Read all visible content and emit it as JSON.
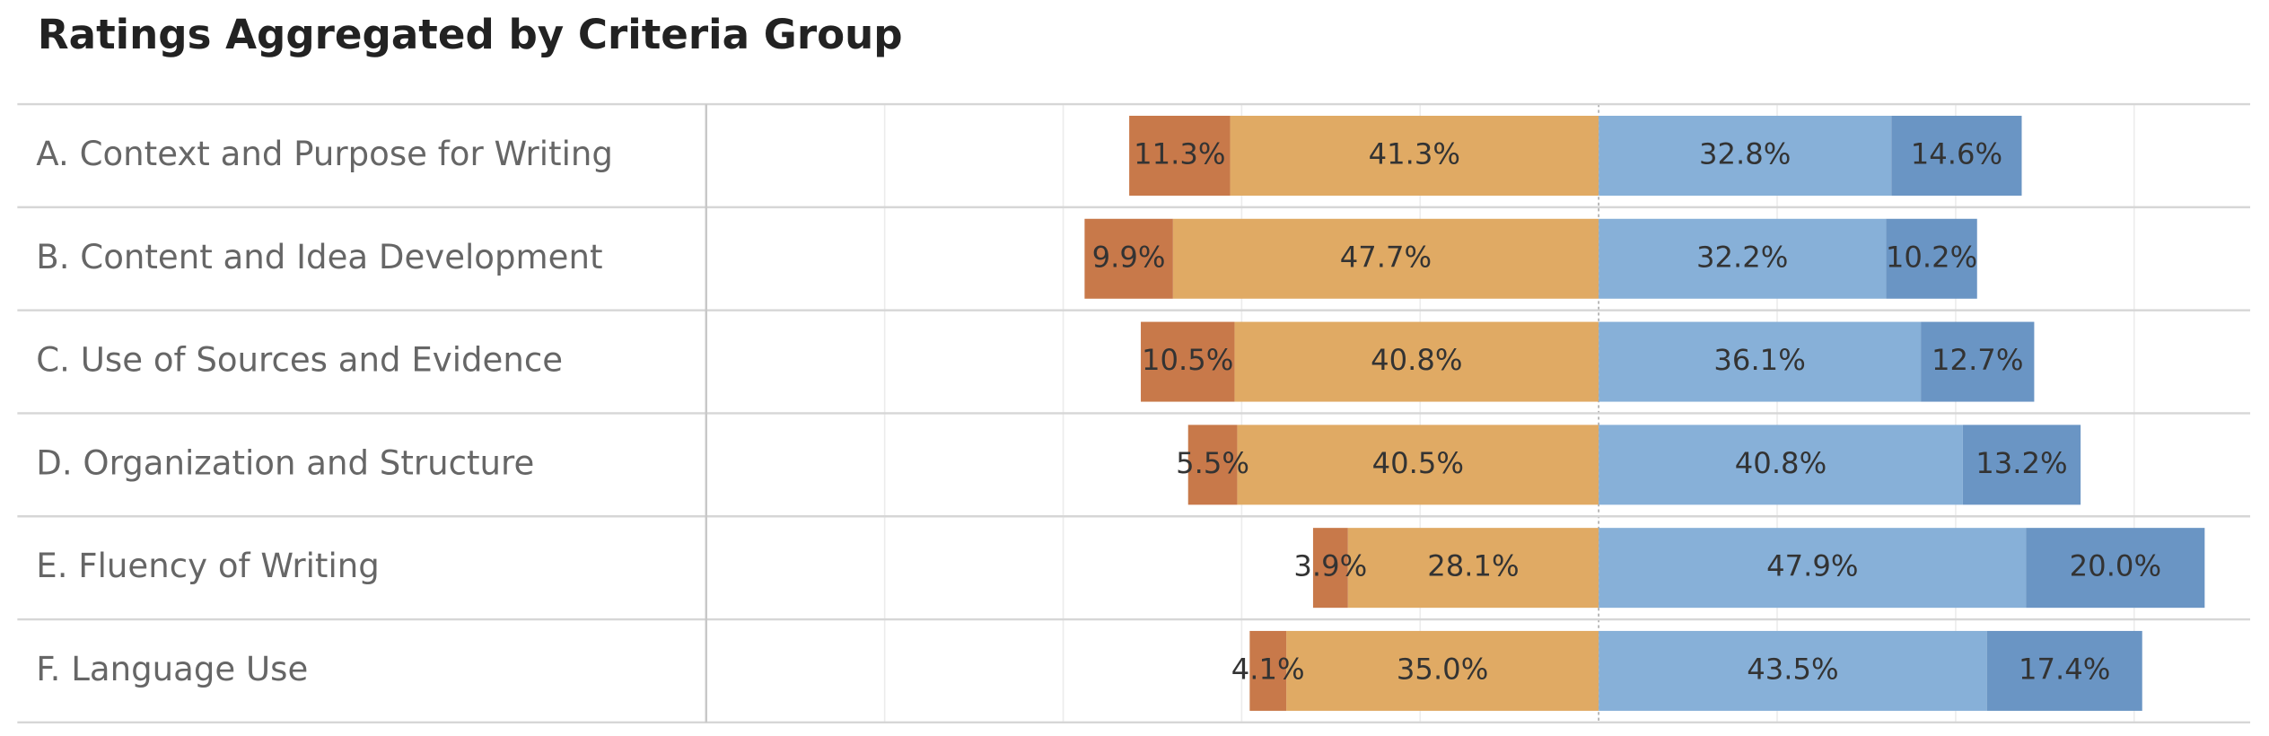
{
  "chart_data": {
    "type": "bar",
    "orientation": "horizontal",
    "diverging": true,
    "title": "Ratings Aggregated by Criteria Group",
    "categories": [
      "A. Context and Purpose for Writing",
      "B. Content and Idea Development",
      "C. Use of Sources and Evidence",
      "D. Organization and Structure",
      "E. Fluency of Writing",
      "F. Language Use"
    ],
    "series": [
      {
        "color": "#c8794a",
        "values": [
          11.3,
          9.9,
          10.5,
          5.5,
          3.9,
          4.1
        ],
        "value_labels": [
          "11.3%",
          "9.9%",
          "10.5%",
          "5.5%",
          "3.9%",
          "4.1%"
        ]
      },
      {
        "color": "#e0aa64",
        "values": [
          41.3,
          47.7,
          40.8,
          40.5,
          28.1,
          35.0
        ],
        "value_labels": [
          "41.3%",
          "47.7%",
          "40.8%",
          "40.5%",
          "28.1%",
          "35.0%"
        ]
      },
      {
        "color": "#87b0d8",
        "values": [
          32.8,
          32.2,
          36.1,
          40.8,
          47.9,
          43.5
        ],
        "value_labels": [
          "32.8%",
          "32.2%",
          "36.1%",
          "40.8%",
          "47.9%",
          "43.5%"
        ]
      },
      {
        "color": "#6a95c4",
        "values": [
          14.6,
          10.2,
          12.7,
          13.2,
          20.0,
          17.4
        ],
        "value_labels": [
          "14.6%",
          "10.2%",
          "12.7%",
          "13.2%",
          "20.0%",
          "17.4%"
        ]
      }
    ],
    "xlim": [
      -100,
      73
    ],
    "xticks": [
      -80,
      -60,
      -40,
      -20,
      0,
      20,
      40,
      60
    ],
    "grid": true
  }
}
